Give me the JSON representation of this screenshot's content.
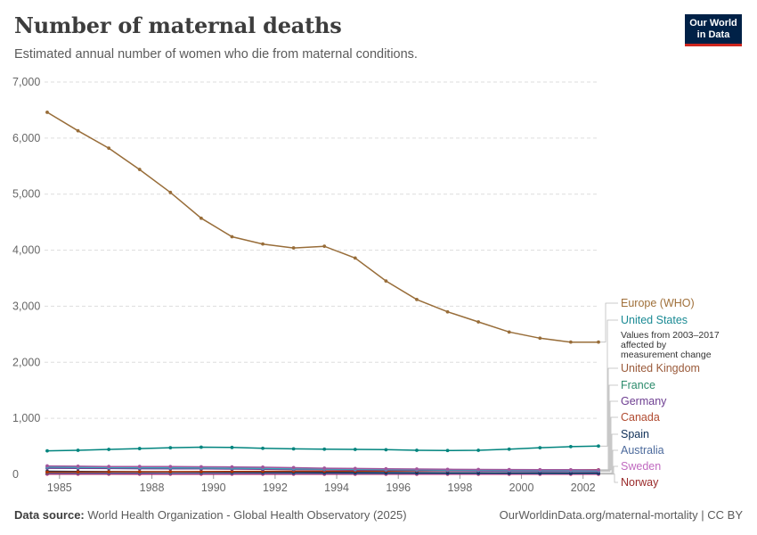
{
  "header": {
    "title": "Number of maternal deaths",
    "subtitle": "Estimated annual number of women who die from maternal conditions."
  },
  "logo": {
    "line1": "Our World",
    "line2": "in Data"
  },
  "footer": {
    "source_label": "Data source:",
    "source_text": "World Health Organization - Global Health Observatory (2025)",
    "url_text": "OurWorldinData.org/maternal-mortality | CC BY"
  },
  "chart_data": {
    "type": "line",
    "title": "Number of maternal deaths",
    "subtitle": "Estimated annual number of women who die from maternal conditions.",
    "xlabel": "",
    "ylabel": "",
    "xlim": [
      1984.6,
      2002.5
    ],
    "ylim": [
      0,
      7000
    ],
    "x_ticks": [
      1985,
      1988,
      1990,
      1992,
      1994,
      1996,
      1998,
      2000,
      2002
    ],
    "y_ticks": [
      0,
      1000,
      2000,
      3000,
      4000,
      5000,
      6000,
      7000
    ],
    "y_tick_labels": [
      "0",
      "1,000",
      "2,000",
      "3,000",
      "4,000",
      "5,000",
      "6,000",
      "7,000"
    ],
    "grid": "horizontal dashed",
    "legend": "right, labels at line ends",
    "x": [
      1984.6,
      1985.6,
      1986.6,
      1987.6,
      1988.6,
      1989.6,
      1990.6,
      1991.6,
      1992.6,
      1993.6,
      1994.6,
      1995.6,
      1996.6,
      1997.6,
      1998.6,
      1999.6,
      2000.6,
      2001.6,
      2002.5
    ],
    "series": [
      {
        "name": "Europe (WHO)",
        "color": "#986d39",
        "values": [
          6460,
          6130,
          5820,
          5440,
          5030,
          4570,
          4240,
          4110,
          4040,
          4070,
          3860,
          3450,
          3120,
          2900,
          2720,
          2540,
          2430,
          2360,
          2360
        ]
      },
      {
        "name": "United States",
        "color": "#00847e",
        "note": "Values from 2003–2017 affected by measurement change",
        "values": [
          420,
          430,
          445,
          460,
          475,
          485,
          480,
          465,
          455,
          450,
          445,
          440,
          430,
          425,
          430,
          450,
          475,
          495,
          505
        ]
      },
      {
        "name": "United Kingdom",
        "color": "#a2559c",
        "values": [
          150,
          145,
          140,
          140,
          138,
          135,
          132,
          128,
          120,
          110,
          105,
          100,
          95,
          90,
          88,
          86,
          84,
          82,
          80
        ]
      },
      {
        "name": "France",
        "color": "#38aaba",
        "values": [
          130,
          125,
          122,
          120,
          118,
          115,
          112,
          108,
          100,
          95,
          90,
          86,
          82,
          78,
          74,
          72,
          70,
          68,
          66
        ]
      },
      {
        "name": "Germany",
        "color": "#6d3e91",
        "values": [
          110,
          108,
          105,
          102,
          100,
          98,
          95,
          90,
          86,
          82,
          78,
          74,
          70,
          66,
          62,
          58,
          56,
          54,
          52
        ]
      },
      {
        "name": "Canada",
        "color": "#b13507",
        "values": [
          40,
          42,
          44,
          46,
          48,
          50,
          52,
          54,
          55,
          56,
          58,
          60,
          62,
          64,
          66,
          70,
          74,
          78,
          82
        ]
      },
      {
        "name": "Spain",
        "color": "#0f2f57",
        "values": [
          55,
          52,
          50,
          48,
          46,
          44,
          42,
          40,
          38,
          36,
          34,
          32,
          30,
          28,
          27,
          26,
          25,
          24,
          24
        ]
      },
      {
        "name": "Australia",
        "color": "#4c6a9c",
        "values": [
          20,
          20,
          19,
          19,
          18,
          18,
          17,
          17,
          16,
          16,
          15,
          15,
          15,
          14,
          14,
          14,
          13,
          13,
          13
        ]
      },
      {
        "name": "Sweden",
        "color": "#cf0a66",
        "values": [
          8,
          8,
          8,
          7,
          7,
          7,
          7,
          6,
          6,
          6,
          6,
          6,
          5,
          5,
          5,
          5,
          5,
          5,
          5
        ]
      },
      {
        "name": "Norway",
        "color": "#883039",
        "values": [
          6,
          6,
          6,
          5,
          5,
          5,
          5,
          5,
          5,
          4,
          4,
          4,
          4,
          4,
          4,
          4,
          4,
          4,
          4
        ]
      }
    ],
    "legend_labels": [
      {
        "name": "Europe (WHO)",
        "color": "#986d39"
      },
      {
        "name": "United States",
        "color": "#00847e"
      },
      {
        "name": "United Kingdom",
        "color": "#a2559c"
      },
      {
        "name": "France",
        "color": "#38aaba"
      },
      {
        "name": "Germany",
        "color": "#6d3e91"
      },
      {
        "name": "Canada",
        "color": "#b13507"
      },
      {
        "name": "Spain",
        "color": "#0f2f57"
      },
      {
        "name": "Australia",
        "color": "#4c6a9c"
      },
      {
        "name": "Sweden",
        "color": "#cf0a66"
      },
      {
        "name": "Norway",
        "color": "#883039"
      }
    ],
    "legend_label_colors": [
      "#a0703a",
      "#1a8a94",
      "#9a5a3a",
      "#2a8a6a",
      "#6d3e91",
      "#b04a30",
      "#0f2f57",
      "#4c6a9c",
      "#c06ac0",
      "#9a2a2a"
    ]
  }
}
